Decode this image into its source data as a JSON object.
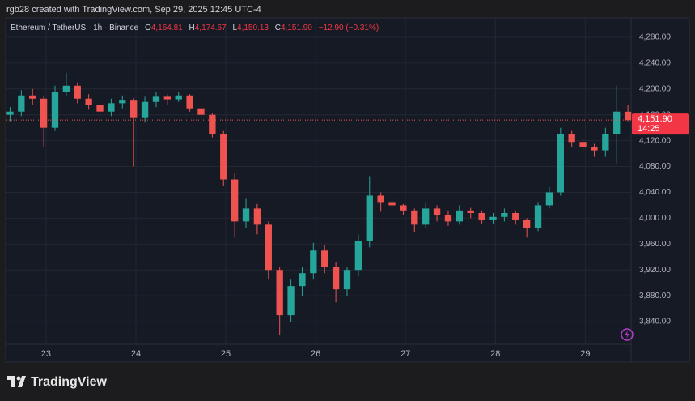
{
  "page": {
    "caption": "rgb28 created with TradingView.com, Sep 29, 2025 12:45 UTC-4",
    "brand": "TradingView"
  },
  "chart_data": {
    "type": "candlestick",
    "legend": {
      "symbol": "Ethereum / TetherUS · 1h · Binance",
      "items": [
        {
          "key": "O",
          "value": "4,164.81"
        },
        {
          "key": "H",
          "value": "4,174.67"
        },
        {
          "key": "L",
          "value": "4,150.13"
        },
        {
          "key": "C",
          "value": "4,151.90"
        }
      ],
      "change": "−12.90 (−0.31%)"
    },
    "up_color": "#26a69a",
    "down_color": "#ef5350",
    "x": [
      22.6,
      22.725,
      22.85,
      22.975,
      23.1,
      23.225,
      23.35,
      23.475,
      23.6,
      23.725,
      23.85,
      23.975,
      24.1,
      24.225,
      24.35,
      24.475,
      24.6,
      24.725,
      24.85,
      24.975,
      25.1,
      25.225,
      25.35,
      25.475,
      25.6,
      25.725,
      25.85,
      25.975,
      26.1,
      26.225,
      26.35,
      26.475,
      26.6,
      26.725,
      26.85,
      26.975,
      27.1,
      27.225,
      27.35,
      27.475,
      27.6,
      27.725,
      27.85,
      27.975,
      28.1,
      28.225,
      28.35,
      28.475,
      28.6,
      28.725,
      28.85,
      28.975,
      29.1,
      29.225,
      29.35,
      29.475
    ],
    "open": [
      4160,
      4165,
      4190,
      4185,
      4140,
      4195,
      4205,
      4185,
      4175,
      4165,
      4178,
      4182,
      4155,
      4180,
      4188,
      4184,
      4190,
      4170,
      4160,
      4130,
      4060,
      3995,
      4015,
      3990,
      3920,
      3850,
      3895,
      3915,
      3950,
      3925,
      3890,
      3920,
      3965,
      4035,
      4025,
      4020,
      4012,
      3990,
      4015,
      4005,
      3995,
      4012,
      4008,
      3998,
      4002,
      4008,
      3998,
      3985,
      4020,
      4040,
      4130,
      4118,
      4110,
      4105,
      4130,
      4164.81
    ],
    "high": [
      4172,
      4198,
      4200,
      4190,
      4205,
      4225,
      4210,
      4192,
      4180,
      4185,
      4190,
      4186,
      4188,
      4195,
      4192,
      4196,
      4192,
      4175,
      4162,
      4135,
      4070,
      4030,
      4022,
      3995,
      3925,
      3905,
      3925,
      3962,
      3958,
      3932,
      3925,
      3975,
      4065,
      4040,
      4032,
      4022,
      4015,
      4025,
      4020,
      4012,
      4020,
      4016,
      4012,
      4008,
      4015,
      4012,
      4000,
      4025,
      4048,
      4140,
      4135,
      4122,
      4115,
      4140,
      4205,
      4174.67
    ],
    "low": [
      4150,
      4158,
      4175,
      4110,
      4135,
      4188,
      4178,
      4168,
      4160,
      4158,
      4170,
      4080,
      4148,
      4172,
      4176,
      4180,
      4165,
      4150,
      4125,
      4050,
      3970,
      3985,
      3975,
      3905,
      3820,
      3840,
      3880,
      3905,
      3915,
      3870,
      3880,
      3910,
      3955,
      4010,
      4012,
      4005,
      3978,
      3985,
      3995,
      3988,
      3990,
      4000,
      3992,
      3992,
      3995,
      3990,
      3970,
      3980,
      4015,
      4035,
      4110,
      4100,
      4095,
      4095,
      4085,
      4150.13
    ],
    "close": [
      4165,
      4190,
      4185,
      4140,
      4195,
      4205,
      4185,
      4175,
      4165,
      4178,
      4182,
      4155,
      4180,
      4188,
      4184,
      4190,
      4170,
      4160,
      4130,
      4060,
      3995,
      4015,
      3990,
      3920,
      3850,
      3895,
      3915,
      3950,
      3925,
      3890,
      3920,
      3965,
      4035,
      4025,
      4020,
      4012,
      3990,
      4015,
      4005,
      3995,
      4012,
      4008,
      3998,
      4002,
      4008,
      3998,
      3985,
      4020,
      4040,
      4130,
      4118,
      4110,
      4105,
      4130,
      4165,
      4151.9
    ],
    "xlim": [
      22.56,
      29.51
    ],
    "xticks": [
      23,
      24,
      25,
      26,
      27,
      28,
      29
    ],
    "ylim": [
      3805,
      4310
    ],
    "yticks": [
      {
        "value": 3840,
        "label": "3,840.00"
      },
      {
        "value": 3880,
        "label": "3,880.00"
      },
      {
        "value": 3920,
        "label": "3,920.00"
      },
      {
        "value": 3960,
        "label": "3,960.00"
      },
      {
        "value": 4000,
        "label": "4,000.00"
      },
      {
        "value": 4040,
        "label": "4,040.00"
      },
      {
        "value": 4080,
        "label": "4,080.00"
      },
      {
        "value": 4120,
        "label": "4,120.00"
      },
      {
        "value": 4160,
        "label": "4,160.00"
      },
      {
        "value": 4200,
        "label": "4,200.00"
      },
      {
        "value": 4240,
        "label": "4,240.00"
      },
      {
        "value": 4280,
        "label": "4,280.00"
      }
    ],
    "grid": true,
    "last_price": {
      "value": 4151.9,
      "label": "4,151.90"
    },
    "countdown": "14:25"
  }
}
